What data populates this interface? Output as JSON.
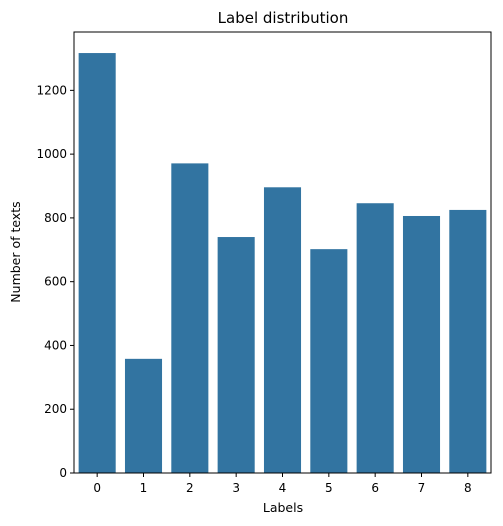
{
  "chart_data": {
    "type": "bar",
    "title": "Label distribution",
    "xlabel": "Labels",
    "ylabel": "Number of texts",
    "categories": [
      "0",
      "1",
      "2",
      "3",
      "4",
      "5",
      "6",
      "7",
      "8"
    ],
    "values": [
      1317,
      358,
      971,
      740,
      896,
      702,
      846,
      806,
      825
    ],
    "ylim": [
      0,
      1383
    ],
    "yticks": [
      0,
      200,
      400,
      600,
      800,
      1000,
      1200
    ],
    "bar_color": "#3274a1",
    "grid": false,
    "legend": "none"
  }
}
